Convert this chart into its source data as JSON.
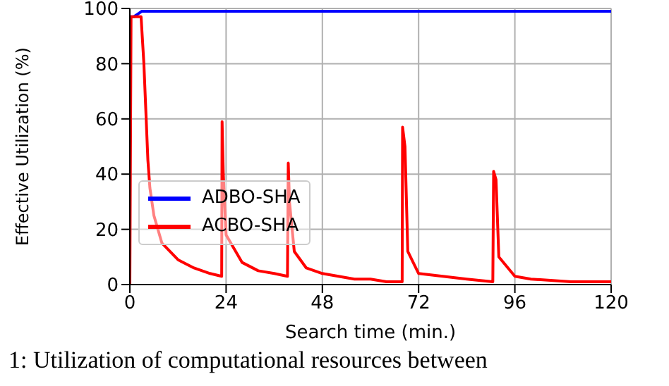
{
  "chart_data": {
    "type": "line",
    "xlabel": "Search time (min.)",
    "ylabel": "Effective Utilization (%)",
    "xlim": [
      0,
      120
    ],
    "xticks": [
      0,
      24,
      48,
      72,
      96,
      120
    ],
    "ylim": [
      0,
      100
    ],
    "yticks": [
      0,
      20,
      40,
      60,
      80,
      100
    ],
    "grid": true,
    "legend": "bottom left",
    "marker": "none",
    "line_style": "solid",
    "annotations": [
      "1: Utilization of computational resources between"
    ],
    "series": [
      {
        "name": "ADBO-SHA",
        "color": "#0000ff",
        "x": [
          0,
          1,
          2,
          3,
          5,
          10,
          20,
          40,
          60,
          80,
          100,
          120
        ],
        "values": [
          97,
          97,
          98,
          99,
          99,
          99,
          99,
          99,
          99,
          99,
          99,
          99
        ]
      },
      {
        "name": "ACBO-SHA",
        "color": "#ff0000",
        "x": [
          0,
          0.3,
          1,
          2.8,
          3.5,
          4.5,
          5,
          6,
          8,
          12,
          16,
          20,
          22.9,
          23,
          23.3,
          24,
          28,
          32,
          36,
          39.3,
          39.5,
          39.8,
          41,
          44,
          48,
          52,
          56,
          60,
          64,
          67.9,
          68,
          68.6,
          69.3,
          72,
          78,
          84,
          90.5,
          90.7,
          91.3,
          92,
          96,
          100,
          110,
          120
        ],
        "values": [
          0,
          97,
          97,
          97,
          80,
          45,
          35,
          25,
          15,
          9,
          6,
          4,
          3,
          59,
          40,
          18,
          8,
          5,
          4,
          3,
          44,
          30,
          12,
          6,
          4,
          3,
          2,
          2,
          1,
          1,
          57,
          50,
          12,
          4,
          3,
          2,
          1,
          41,
          38,
          10,
          3,
          2,
          1,
          1
        ]
      }
    ]
  }
}
